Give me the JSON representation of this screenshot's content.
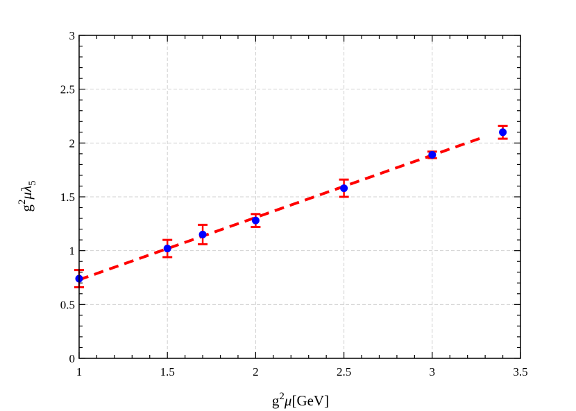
{
  "chart_data": {
    "type": "scatter",
    "xlabel": {
      "base": "g",
      "sup": "2",
      "mu": "μ",
      "rest": "[GeV]"
    },
    "ylabel": {
      "base": "g",
      "sup": "2",
      "mu": "μλ",
      "sub": "5"
    },
    "xlim": [
      1,
      3.5
    ],
    "ylim": [
      0,
      3
    ],
    "xticks": [
      1,
      1.5,
      2,
      2.5,
      3,
      3.5
    ],
    "xtick_labels": [
      "1",
      "1.5",
      "2",
      "2.5",
      "3",
      "3.5"
    ],
    "yticks": [
      0,
      0.5,
      1,
      1.5,
      2,
      2.5,
      3
    ],
    "ytick_labels": [
      "0",
      "0.5",
      "1",
      "1.5",
      "2",
      "2.5",
      "3"
    ],
    "grid": true,
    "series": [
      {
        "kind": "points-with-errorbars",
        "color": "#0000ff",
        "error_color": "#ff0000",
        "x": [
          1.0,
          1.5,
          1.7,
          2.0,
          2.5,
          3.0,
          3.4
        ],
        "y": [
          0.74,
          1.02,
          1.15,
          1.28,
          1.58,
          1.89,
          2.1
        ],
        "yerr": [
          0.08,
          0.08,
          0.09,
          0.06,
          0.08,
          0.03,
          0.06
        ]
      },
      {
        "kind": "fit-line",
        "style": "dashed",
        "color": "#ff0000",
        "x": [
          1.0,
          3.3
        ],
        "y": [
          0.73,
          2.06
        ]
      }
    ]
  }
}
